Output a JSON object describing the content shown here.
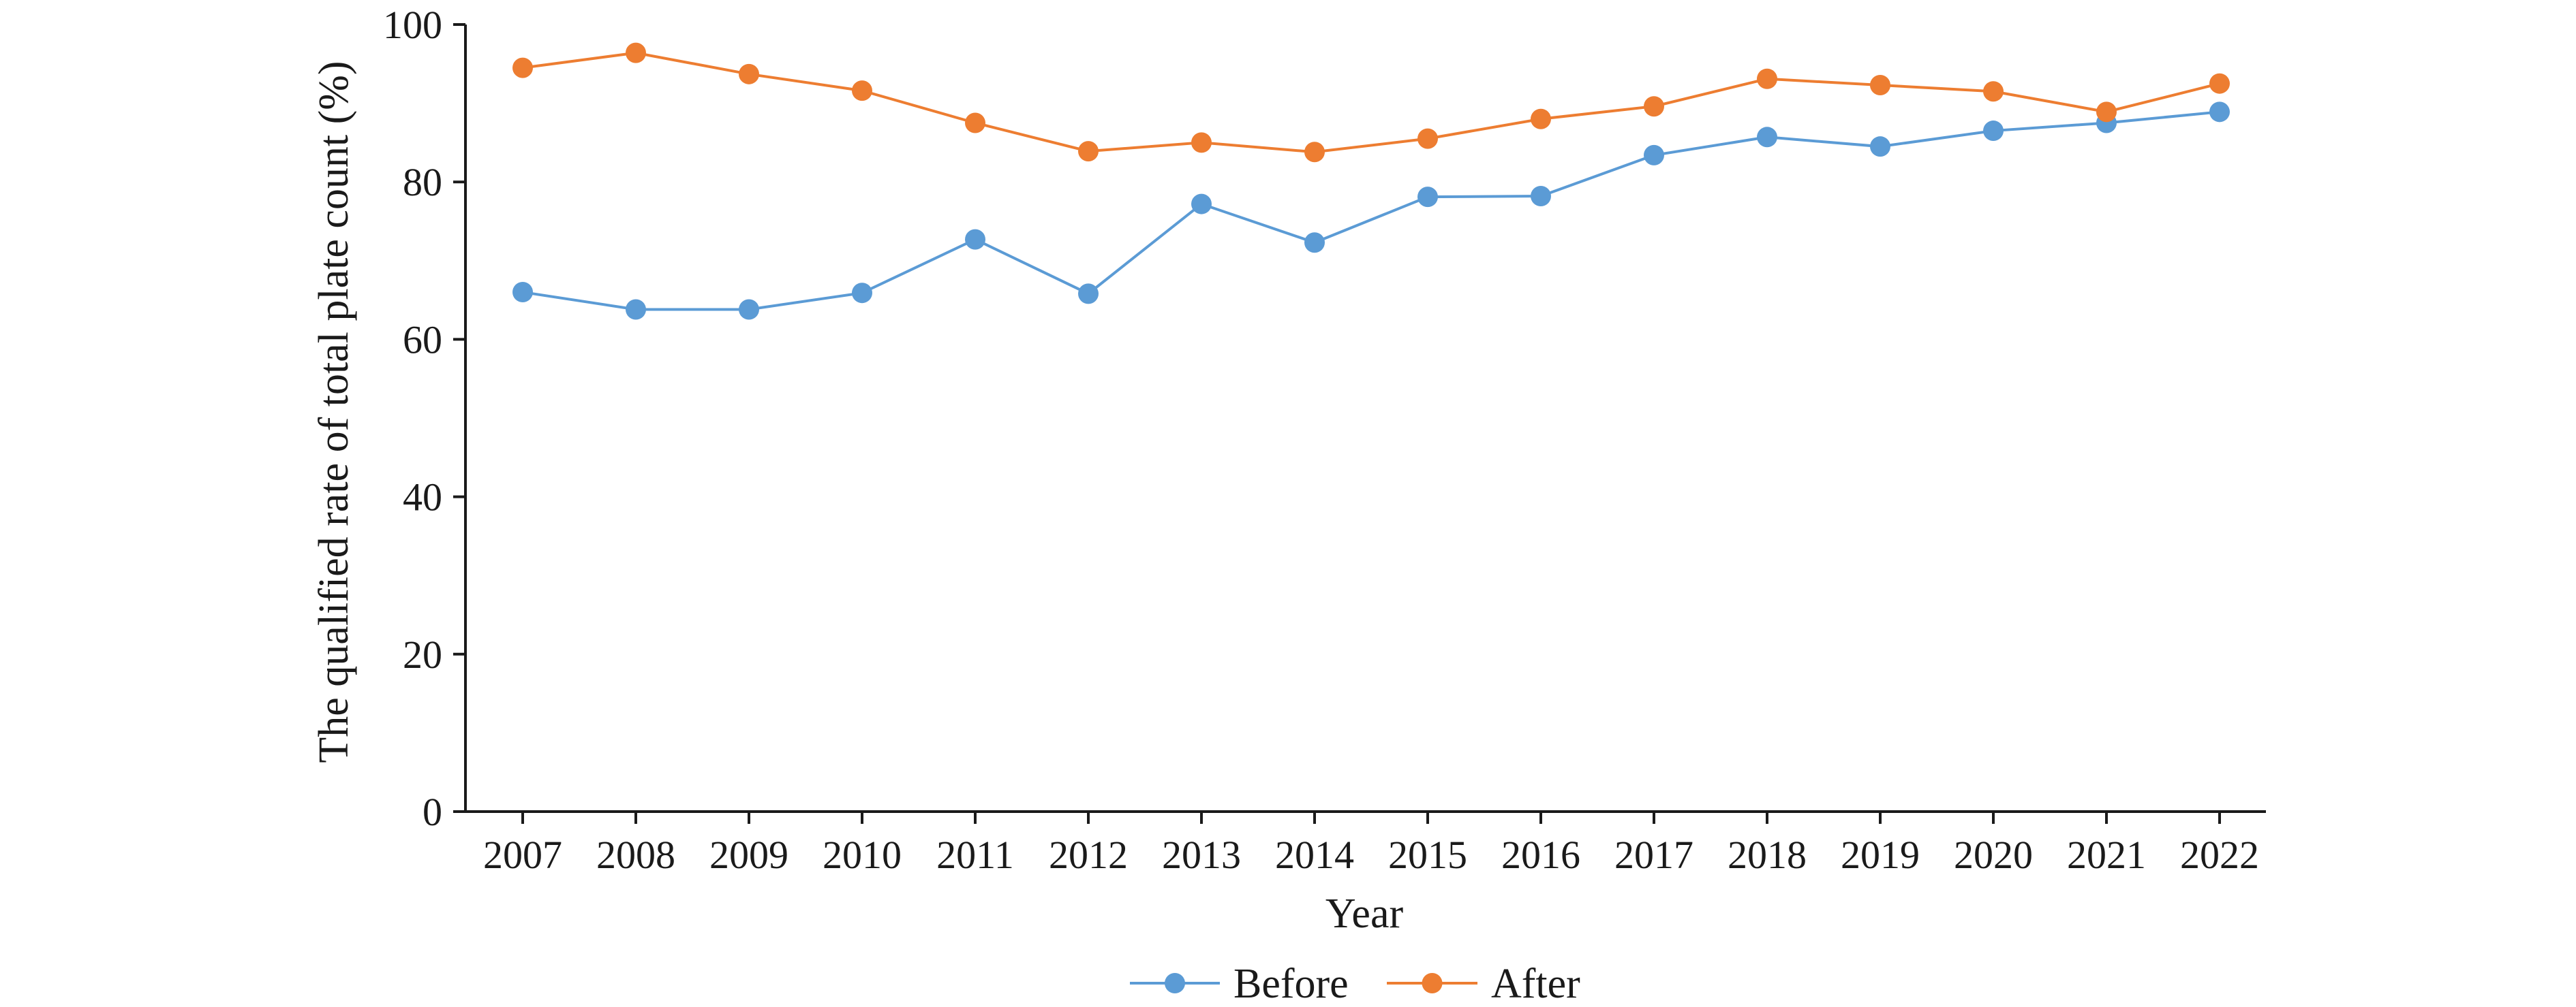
{
  "chart_data": {
    "type": "line",
    "title": "",
    "xlabel": "Year",
    "ylabel": "The qualified rate of total plate count (%)",
    "ylim": [
      0,
      100
    ],
    "yticks": [
      0,
      20,
      40,
      60,
      80,
      100
    ],
    "categories": [
      "2007",
      "2008",
      "2009",
      "2010",
      "2011",
      "2012",
      "2013",
      "2014",
      "2015",
      "2016",
      "2017",
      "2018",
      "2019",
      "2020",
      "2021",
      "2022"
    ],
    "series": [
      {
        "name": "Before",
        "color": "#5b9bd5",
        "values": [
          66.0,
          63.8,
          63.8,
          65.9,
          72.7,
          65.8,
          77.2,
          72.3,
          78.1,
          78.2,
          83.4,
          85.7,
          84.5,
          86.5,
          87.5,
          88.9
        ]
      },
      {
        "name": "After",
        "color": "#ed7d31",
        "values": [
          94.5,
          96.4,
          93.7,
          91.6,
          87.5,
          83.9,
          85.0,
          83.8,
          85.5,
          88.0,
          89.6,
          93.1,
          92.3,
          91.5,
          88.9,
          92.5
        ]
      }
    ],
    "grid": false,
    "legend": "bottom-center"
  }
}
